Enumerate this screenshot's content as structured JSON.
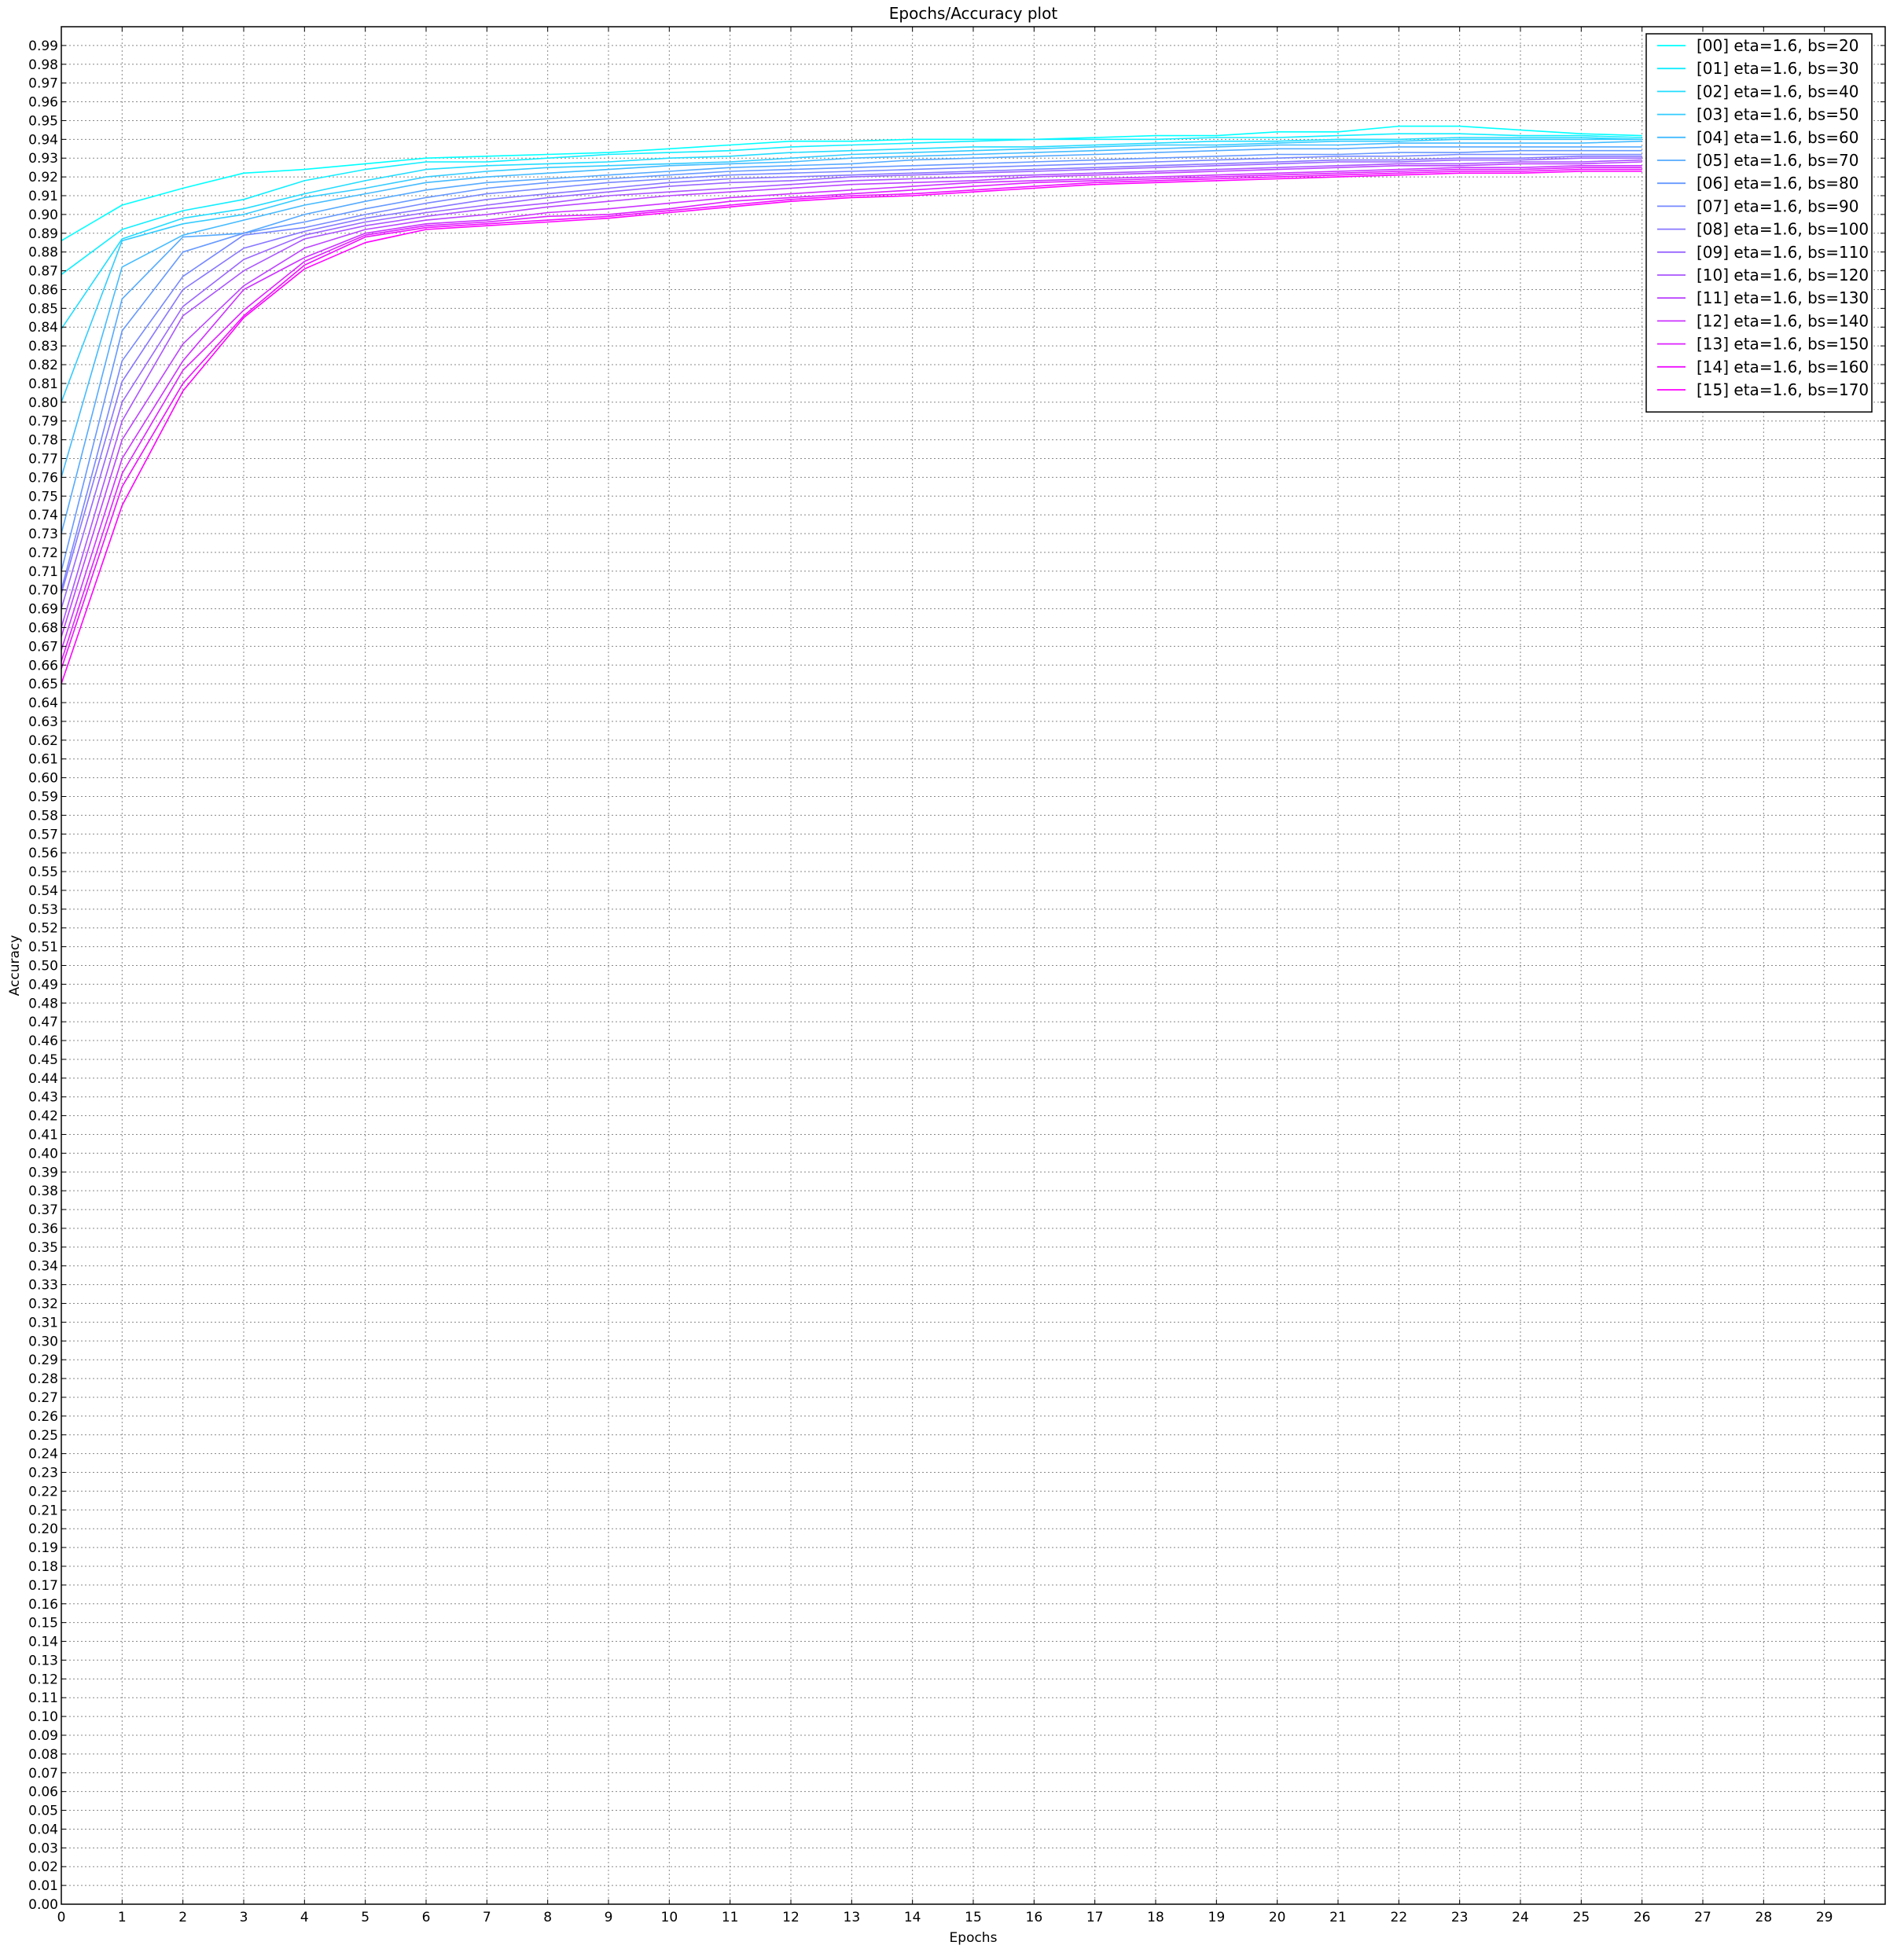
{
  "chart_data": {
    "type": "line",
    "title": "Epochs/Accuracy plot",
    "xlabel": "Epochs",
    "ylabel": "Accuracy",
    "xlim": [
      0,
      30
    ],
    "ylim": [
      0,
      1.0
    ],
    "x_ticks": [
      0,
      1,
      2,
      3,
      4,
      5,
      6,
      7,
      8,
      9,
      10,
      11,
      12,
      13,
      14,
      15,
      16,
      17,
      18,
      19,
      20,
      21,
      22,
      23,
      24,
      25,
      26,
      27,
      28,
      29
    ],
    "y_tick_step": 0.01,
    "grid": true,
    "grid_style": "dotted",
    "legend_position": "top-right",
    "x": [
      0,
      1,
      2,
      3,
      4,
      5,
      6,
      7,
      8,
      9,
      10,
      11,
      12,
      13,
      14,
      15,
      16,
      17,
      18,
      19,
      20,
      21,
      22,
      23,
      24,
      25,
      26
    ],
    "series": [
      {
        "name": "[00] eta=1.6, bs=20",
        "color": "#00ffff",
        "values": [
          0.886,
          0.905,
          0.914,
          0.922,
          0.924,
          0.927,
          0.93,
          0.931,
          0.932,
          0.933,
          0.935,
          0.937,
          0.939,
          0.939,
          0.94,
          0.94,
          0.94,
          0.941,
          0.942,
          0.942,
          0.944,
          0.944,
          0.947,
          0.947,
          0.945,
          0.943,
          0.942
        ]
      },
      {
        "name": "[01] eta=1.6, bs=30",
        "color": "#11eeff",
        "values": [
          0.868,
          0.892,
          0.902,
          0.908,
          0.918,
          0.924,
          0.928,
          0.928,
          0.93,
          0.932,
          0.933,
          0.934,
          0.936,
          0.937,
          0.938,
          0.939,
          0.94,
          0.94,
          0.94,
          0.941,
          0.941,
          0.942,
          0.943,
          0.943,
          0.942,
          0.942,
          0.941
        ]
      },
      {
        "name": "[02] eta=1.6, bs=40",
        "color": "#22ddff",
        "values": [
          0.839,
          0.887,
          0.898,
          0.903,
          0.911,
          0.918,
          0.924,
          0.926,
          0.927,
          0.928,
          0.93,
          0.931,
          0.933,
          0.934,
          0.935,
          0.936,
          0.936,
          0.937,
          0.938,
          0.939,
          0.939,
          0.94,
          0.94,
          0.941,
          0.941,
          0.941,
          0.94
        ]
      },
      {
        "name": "[03] eta=1.6, bs=50",
        "color": "#33ccff",
        "values": [
          0.8,
          0.886,
          0.895,
          0.9,
          0.909,
          0.914,
          0.92,
          0.923,
          0.925,
          0.926,
          0.927,
          0.928,
          0.93,
          0.932,
          0.933,
          0.934,
          0.935,
          0.936,
          0.937,
          0.937,
          0.938,
          0.939,
          0.939,
          0.94,
          0.94,
          0.94,
          0.94
        ]
      },
      {
        "name": "[04] eta=1.6, bs=60",
        "color": "#44bbff",
        "values": [
          0.76,
          0.872,
          0.889,
          0.897,
          0.905,
          0.911,
          0.917,
          0.92,
          0.922,
          0.924,
          0.926,
          0.927,
          0.928,
          0.93,
          0.931,
          0.932,
          0.933,
          0.934,
          0.935,
          0.936,
          0.937,
          0.937,
          0.938,
          0.938,
          0.938,
          0.938,
          0.939
        ]
      },
      {
        "name": "[05] eta=1.6, bs=70",
        "color": "#55aaff",
        "values": [
          0.73,
          0.855,
          0.888,
          0.89,
          0.9,
          0.907,
          0.913,
          0.917,
          0.919,
          0.921,
          0.923,
          0.925,
          0.926,
          0.927,
          0.929,
          0.93,
          0.931,
          0.932,
          0.933,
          0.934,
          0.935,
          0.935,
          0.936,
          0.936,
          0.936,
          0.936,
          0.936
        ]
      },
      {
        "name": "[06] eta=1.6, bs=80",
        "color": "#6699ff",
        "values": [
          0.71,
          0.838,
          0.88,
          0.89,
          0.896,
          0.903,
          0.909,
          0.914,
          0.917,
          0.919,
          0.921,
          0.923,
          0.924,
          0.925,
          0.926,
          0.927,
          0.928,
          0.929,
          0.93,
          0.931,
          0.932,
          0.932,
          0.933,
          0.933,
          0.934,
          0.934,
          0.934
        ]
      },
      {
        "name": "[07] eta=1.6, bs=90",
        "color": "#7788ff",
        "values": [
          0.7,
          0.822,
          0.867,
          0.889,
          0.893,
          0.9,
          0.906,
          0.911,
          0.914,
          0.917,
          0.919,
          0.921,
          0.922,
          0.923,
          0.924,
          0.925,
          0.926,
          0.927,
          0.928,
          0.929,
          0.93,
          0.931,
          0.931,
          0.932,
          0.932,
          0.932,
          0.932
        ]
      },
      {
        "name": "[08] eta=1.6, bs=100",
        "color": "#8877ff",
        "values": [
          0.698,
          0.811,
          0.86,
          0.882,
          0.891,
          0.898,
          0.903,
          0.908,
          0.911,
          0.914,
          0.917,
          0.919,
          0.92,
          0.921,
          0.922,
          0.923,
          0.924,
          0.925,
          0.926,
          0.927,
          0.928,
          0.929,
          0.929,
          0.93,
          0.93,
          0.931,
          0.931
        ]
      },
      {
        "name": "[09] eta=1.6, bs=110",
        "color": "#9966ff",
        "values": [
          0.69,
          0.8,
          0.851,
          0.876,
          0.889,
          0.896,
          0.901,
          0.905,
          0.909,
          0.912,
          0.915,
          0.917,
          0.918,
          0.92,
          0.921,
          0.922,
          0.923,
          0.924,
          0.925,
          0.926,
          0.927,
          0.928,
          0.928,
          0.929,
          0.929,
          0.93,
          0.93
        ]
      },
      {
        "name": "[10] eta=1.6, bs=120",
        "color": "#aa55ff",
        "values": [
          0.68,
          0.79,
          0.846,
          0.87,
          0.887,
          0.894,
          0.899,
          0.903,
          0.906,
          0.91,
          0.912,
          0.914,
          0.916,
          0.918,
          0.919,
          0.92,
          0.921,
          0.922,
          0.923,
          0.924,
          0.925,
          0.926,
          0.927,
          0.927,
          0.928,
          0.928,
          0.929
        ]
      },
      {
        "name": "[11] eta=1.6, bs=130",
        "color": "#bb44ff",
        "values": [
          0.675,
          0.78,
          0.831,
          0.862,
          0.882,
          0.892,
          0.897,
          0.9,
          0.904,
          0.907,
          0.91,
          0.912,
          0.914,
          0.916,
          0.917,
          0.918,
          0.92,
          0.921,
          0.922,
          0.923,
          0.924,
          0.925,
          0.926,
          0.926,
          0.927,
          0.927,
          0.928
        ]
      },
      {
        "name": "[12] eta=1.6, bs=140",
        "color": "#cc33ff",
        "values": [
          0.668,
          0.77,
          0.822,
          0.86,
          0.877,
          0.89,
          0.895,
          0.897,
          0.901,
          0.903,
          0.906,
          0.909,
          0.911,
          0.913,
          0.915,
          0.917,
          0.918,
          0.919,
          0.92,
          0.921,
          0.922,
          0.923,
          0.924,
          0.925,
          0.925,
          0.926,
          0.926
        ]
      },
      {
        "name": "[13] eta=1.6, bs=150",
        "color": "#dd22ff",
        "values": [
          0.662,
          0.762,
          0.817,
          0.849,
          0.875,
          0.889,
          0.894,
          0.896,
          0.899,
          0.9,
          0.903,
          0.907,
          0.909,
          0.911,
          0.913,
          0.915,
          0.917,
          0.918,
          0.919,
          0.92,
          0.921,
          0.922,
          0.923,
          0.924,
          0.924,
          0.925,
          0.925
        ]
      },
      {
        "name": "[14] eta=1.6, bs=160",
        "color": "#ee11ff",
        "values": [
          0.658,
          0.755,
          0.81,
          0.846,
          0.873,
          0.888,
          0.893,
          0.895,
          0.897,
          0.899,
          0.902,
          0.905,
          0.908,
          0.91,
          0.911,
          0.913,
          0.915,
          0.917,
          0.918,
          0.919,
          0.92,
          0.921,
          0.922,
          0.923,
          0.923,
          0.924,
          0.924
        ]
      },
      {
        "name": "[15] eta=1.6, bs=170",
        "color": "#ff00ff",
        "values": [
          0.65,
          0.745,
          0.806,
          0.845,
          0.871,
          0.885,
          0.892,
          0.894,
          0.896,
          0.898,
          0.901,
          0.904,
          0.907,
          0.909,
          0.91,
          0.912,
          0.914,
          0.916,
          0.917,
          0.918,
          0.919,
          0.92,
          0.921,
          0.922,
          0.922,
          0.923,
          0.923
        ]
      }
    ]
  }
}
